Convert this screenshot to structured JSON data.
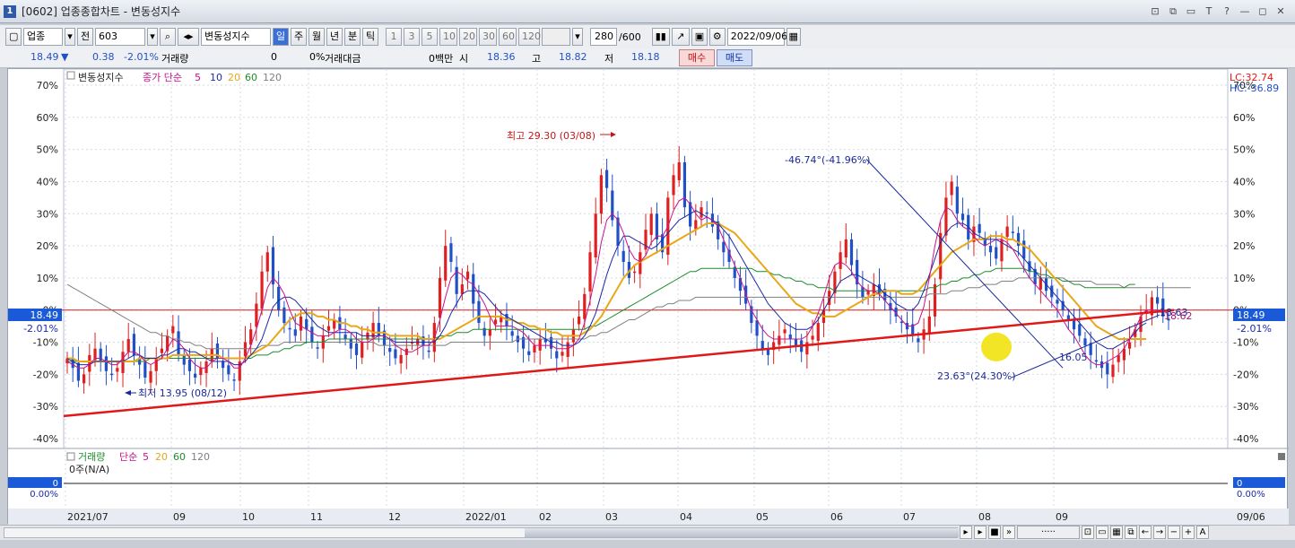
{
  "window": {
    "title": "[0602] 업종종합차트 - 변동성지수",
    "controls": [
      "⊡",
      "⧉",
      "▭",
      "T",
      "?",
      "—",
      "◻",
      "✕"
    ]
  },
  "toolbar": {
    "market": "업종",
    "all_label": "전",
    "code": "603",
    "name": "변동성지수",
    "periods": [
      "일",
      "주",
      "월",
      "년",
      "분",
      "틱"
    ],
    "intervals": [
      "1",
      "3",
      "5",
      "10",
      "20",
      "30",
      "60",
      "120"
    ],
    "count": "280",
    "count_total": "/600",
    "date": "2022/09/06"
  },
  "quote": {
    "price": "18.49",
    "change": "0.38",
    "change_pct": "-2.01%",
    "volume_label": "거래량",
    "volume": "0",
    "volume_pct": "0%",
    "amount_label": "거래대금",
    "amount": "0백만",
    "open_label": "시",
    "open": "18.36",
    "high_label": "고",
    "high": "18.82",
    "low_label": "저",
    "low": "18.18",
    "buy_label": "매수",
    "sell_label": "매도"
  },
  "chart_data": {
    "type": "candlestick",
    "legend": {
      "series_label": "변동성지수",
      "ma_label": "종가 단순",
      "ma_periods": [
        "5",
        "10",
        "20",
        "60",
        "120"
      ],
      "ma_colors": [
        "#c8148c",
        "#1a2aa8",
        "#e8a818",
        "#1e8c2c",
        "#808080"
      ]
    },
    "y_ticks": [
      "70%",
      "60%",
      "50%",
      "40%",
      "30%",
      "20%",
      "10%",
      "0%",
      "-10%",
      "-20%",
      "-30%",
      "-40%"
    ],
    "ylim": [
      -40,
      70
    ],
    "x_ticks": [
      "2021/07",
      "09",
      "10",
      "11",
      "12",
      "2022/01",
      "02",
      "03",
      "04",
      "05",
      "06",
      "07",
      "08",
      "09",
      "09/06"
    ],
    "lc_label": "LC:32.74",
    "hc_label": "HC:-36.89",
    "current_value": "18.49",
    "current_pct": "-2.01%",
    "annotations": {
      "high": "최고 29.30 (03/08)",
      "low": "최저 13.95 (08/12)",
      "trend1": "-46.74°(-41.96%)",
      "trend2": "23.63°(24.30%)",
      "right_value1": "18.63",
      "right_value2": "18.62",
      "mark_value": "16.05"
    },
    "candles": [
      -15,
      -18,
      -22,
      -20,
      -14,
      -12,
      -16,
      -19,
      -20,
      -18,
      -13,
      -9,
      -14,
      -17,
      -21,
      -19,
      -15,
      -12,
      -8,
      -5,
      -14,
      -17,
      -19,
      -21,
      -18,
      -16,
      -12,
      -15,
      -18,
      -20,
      -22,
      -16,
      -10,
      -6,
      2,
      12,
      18,
      8,
      0,
      -4,
      -6,
      -8,
      -2,
      -6,
      -10,
      -12,
      -8,
      -5,
      -3,
      -6,
      -9,
      -12,
      -14,
      -10,
      -7,
      -4,
      -8,
      -11,
      -13,
      -15,
      -14,
      -12,
      -10,
      -9,
      -11,
      -13,
      -4,
      10,
      20,
      15,
      5,
      8,
      12,
      2,
      -4,
      -8,
      -6,
      -3,
      -2,
      -5,
      -8,
      -10,
      -12,
      -14,
      -11,
      -9,
      -10,
      -12,
      -15,
      -13,
      -10,
      -6,
      -2,
      5,
      18,
      30,
      42,
      38,
      28,
      20,
      15,
      10,
      12,
      18,
      25,
      30,
      22,
      18,
      35,
      42,
      46,
      32,
      26,
      28,
      32,
      30,
      26,
      22,
      18,
      15,
      10,
      6,
      2,
      -4,
      -8,
      -12,
      -14,
      -10,
      -8,
      -6,
      -9,
      -11,
      -13,
      -10,
      -8,
      -4,
      0,
      6,
      12,
      18,
      22,
      14,
      8,
      4,
      6,
      8,
      5,
      3,
      0,
      -2,
      -4,
      -6,
      -8,
      -10,
      -6,
      -2,
      8,
      24,
      35,
      40,
      30,
      28,
      22,
      26,
      24,
      20,
      18,
      16,
      22,
      26,
      24,
      20,
      16,
      12,
      8,
      10,
      6,
      4,
      2,
      0,
      -3,
      -6,
      -8,
      -11,
      -14,
      -16,
      -18,
      -20,
      -17,
      -14,
      -12,
      -10,
      -6,
      -2,
      0,
      4,
      2,
      -2,
      -3
    ],
    "ma5": [
      -16,
      -17,
      -18,
      -18,
      -17,
      -15,
      -15,
      -16,
      -17,
      -17,
      -15,
      -13,
      -13,
      -14,
      -16,
      -17,
      -16,
      -15,
      -12,
      -9,
      -10,
      -12,
      -15,
      -17,
      -18,
      -18,
      -16,
      -15,
      -15,
      -16,
      -18,
      -18,
      -15,
      -11,
      -6,
      0,
      7,
      10,
      8,
      5,
      0,
      -4,
      -5,
      -6,
      -7,
      -8,
      -8,
      -8,
      -7,
      -6,
      -6,
      -7,
      -9,
      -10,
      -10,
      -9,
      -8,
      -8,
      -9,
      -11,
      -12,
      -13,
      -13,
      -12,
      -11,
      -11,
      -9,
      -3,
      4,
      10,
      12,
      11,
      9,
      8,
      5,
      2,
      -2,
      -5,
      -5,
      -5,
      -5,
      -6,
      -7,
      -9,
      -11,
      -11,
      -11,
      -11,
      -12,
      -12,
      -12,
      -11,
      -9,
      -4,
      3,
      11,
      21,
      28,
      30,
      28,
      24,
      19,
      16,
      15,
      17,
      21,
      23,
      23,
      26,
      31,
      34,
      35,
      33,
      30,
      28,
      29,
      28,
      26,
      22,
      18,
      14,
      10,
      5,
      0,
      -3,
      -6,
      -8,
      -9,
      -9,
      -9,
      -9,
      -9,
      -9,
      -8,
      -5,
      -1,
      4,
      10,
      14,
      15,
      14,
      12,
      9,
      7,
      6,
      6,
      5,
      3,
      1,
      -1,
      -3,
      -5,
      -5,
      -4,
      1,
      10,
      20,
      28,
      32,
      31,
      28,
      26,
      25,
      23,
      21,
      20,
      21,
      22,
      22,
      21,
      19,
      16,
      13,
      10,
      8,
      6,
      4,
      2,
      0,
      -3,
      -6,
      -8,
      -11,
      -14,
      -16,
      -17,
      -17,
      -16,
      -15,
      -14,
      -12,
      -9,
      -6,
      -2,
      0,
      0,
      0,
      -1
    ],
    "ma10": [
      -15,
      -16,
      -17,
      -17,
      -17,
      -16,
      -16,
      -16,
      -16,
      -16,
      -16,
      -15,
      -14,
      -14,
      -15,
      -15,
      -15,
      -14,
      -14,
      -13,
      -12,
      -12,
      -13,
      -13,
      -14,
      -15,
      -16,
      -16,
      -16,
      -16,
      -17,
      -17,
      -16,
      -14,
      -12,
      -9,
      -4,
      1,
      3,
      4,
      4,
      3,
      1,
      -1,
      -3,
      -5,
      -6,
      -7,
      -7,
      -7,
      -7,
      -7,
      -7,
      -8,
      -8,
      -8,
      -8,
      -8,
      -9,
      -10,
      -10,
      -10,
      -10,
      -10,
      -10,
      -10,
      -10,
      -8,
      -5,
      -1,
      2,
      5,
      6,
      6,
      6,
      5,
      3,
      1,
      -1,
      -2,
      -3,
      -4,
      -5,
      -6,
      -7,
      -8,
      -9,
      -10,
      -10,
      -11,
      -11,
      -11,
      -10,
      -8,
      -5,
      -1,
      5,
      11,
      16,
      20,
      23,
      23,
      22,
      21,
      20,
      19,
      20,
      22,
      24,
      26,
      28,
      29,
      30,
      31,
      30,
      29,
      28,
      27,
      25,
      23,
      20,
      17,
      14,
      11,
      8,
      5,
      2,
      0,
      -2,
      -4,
      -5,
      -6,
      -6,
      -6,
      -5,
      -3,
      0,
      3,
      6,
      9,
      10,
      11,
      11,
      10,
      9,
      8,
      7,
      5,
      4,
      2,
      1,
      0,
      0,
      2,
      6,
      11,
      16,
      21,
      24,
      26,
      27,
      27,
      26,
      24,
      23,
      22,
      22,
      22,
      21,
      20,
      19,
      18,
      16,
      14,
      12,
      10,
      8,
      6,
      4,
      2,
      0,
      -2,
      -4,
      -6,
      -8,
      -10,
      -11,
      -12,
      -12,
      -11,
      -10,
      -9,
      -7,
      -5,
      -4
    ],
    "ma20": [
      -15,
      -15,
      -16,
      -16,
      -16,
      -16,
      -16,
      -16,
      -16,
      -16,
      -16,
      -16,
      -16,
      -15,
      -15,
      -15,
      -15,
      -15,
      -15,
      -14,
      -14,
      -14,
      -14,
      -14,
      -14,
      -14,
      -14,
      -14,
      -15,
      -15,
      -15,
      -15,
      -15,
      -14,
      -13,
      -12,
      -11,
      -9,
      -7,
      -5,
      -3,
      -2,
      -1,
      -1,
      -1,
      -2,
      -2,
      -3,
      -3,
      -4,
      -4,
      -5,
      -5,
      -6,
      -6,
      -7,
      -7,
      -7,
      -8,
      -8,
      -8,
      -8,
      -8,
      -8,
      -9,
      -9,
      -9,
      -9,
      -8,
      -7,
      -6,
      -5,
      -4,
      -3,
      -2,
      -2,
      -2,
      -2,
      -2,
      -3,
      -3,
      -4,
      -4,
      -5,
      -5,
      -6,
      -6,
      -7,
      -7,
      -8,
      -8,
      -8,
      -8,
      -7,
      -6,
      -4,
      -2,
      1,
      4,
      7,
      10,
      12,
      14,
      15,
      16,
      17,
      18,
      19,
      20,
      21,
      22,
      23,
      24,
      25,
      26,
      27,
      27,
      27,
      26,
      25,
      24,
      22,
      20,
      18,
      16,
      14,
      12,
      10,
      8,
      6,
      4,
      2,
      1,
      0,
      -1,
      -1,
      -2,
      -2,
      -2,
      -1,
      0,
      1,
      2,
      3,
      4,
      5,
      5,
      6,
      6,
      6,
      5,
      5,
      5,
      6,
      8,
      10,
      12,
      14,
      16,
      18,
      19,
      20,
      21,
      22,
      22,
      22,
      23,
      23,
      23,
      22,
      22,
      21,
      20,
      19,
      17,
      15,
      13,
      11,
      9,
      7,
      5,
      3,
      1,
      -1,
      -3,
      -5,
      -6,
      -7,
      -8,
      -9,
      -9,
      -9,
      -9,
      -9,
      -9
    ],
    "ma60": [
      -16,
      -16,
      -16,
      -16,
      -16,
      -16,
      -16,
      -16,
      -16,
      -16,
      -16,
      -16,
      -16,
      -16,
      -16,
      -15,
      -15,
      -15,
      -15,
      -15,
      -15,
      -15,
      -15,
      -15,
      -15,
      -15,
      -15,
      -15,
      -15,
      -15,
      -15,
      -15,
      -15,
      -15,
      -14,
      -14,
      -14,
      -13,
      -13,
      -12,
      -12,
      -11,
      -11,
      -10,
      -10,
      -10,
      -10,
      -9,
      -9,
      -9,
      -9,
      -9,
      -9,
      -9,
      -9,
      -9,
      -9,
      -9,
      -9,
      -9,
      -9,
      -9,
      -9,
      -9,
      -9,
      -9,
      -9,
      -8,
      -8,
      -8,
      -7,
      -7,
      -7,
      -6,
      -6,
      -6,
      -6,
      -6,
      -6,
      -6,
      -6,
      -6,
      -6,
      -6,
      -6,
      -6,
      -6,
      -6,
      -6,
      -6,
      -6,
      -6,
      -6,
      -6,
      -5,
      -5,
      -4,
      -3,
      -2,
      -1,
      0,
      1,
      2,
      3,
      4,
      5,
      6,
      7,
      8,
      9,
      10,
      11,
      12,
      12,
      13,
      13,
      13,
      13,
      13,
      13,
      13,
      13,
      13,
      13,
      12,
      12,
      12,
      11,
      11,
      10,
      10,
      9,
      9,
      8,
      8,
      7,
      7,
      7,
      6,
      6,
      6,
      6,
      6,
      6,
      6,
      6,
      6,
      6,
      6,
      6,
      6,
      6,
      6,
      6,
      6,
      7,
      7,
      8,
      8,
      9,
      9,
      10,
      10,
      11,
      11,
      12,
      12,
      13,
      13,
      13,
      13,
      13,
      13,
      12,
      12,
      11,
      11,
      10,
      10,
      9,
      9,
      8,
      8,
      7,
      7,
      7,
      7,
      7,
      7,
      7,
      7,
      8,
      8
    ],
    "ma120": [
      8,
      7,
      6,
      5,
      4,
      3,
      2,
      1,
      0,
      -1,
      -2,
      -3,
      -4,
      -5,
      -6,
      -7,
      -7,
      -8,
      -8,
      -9,
      -9,
      -10,
      -10,
      -11,
      -11,
      -12,
      -12,
      -12,
      -12,
      -12,
      -12,
      -12,
      -12,
      -12,
      -12,
      -11,
      -11,
      -11,
      -11,
      -10,
      -10,
      -10,
      -10,
      -10,
      -10,
      -10,
      -10,
      -10,
      -10,
      -10,
      -10,
      -10,
      -10,
      -10,
      -10,
      -10,
      -11,
      -11,
      -11,
      -11,
      -11,
      -11,
      -11,
      -11,
      -11,
      -11,
      -11,
      -11,
      -11,
      -10,
      -10,
      -10,
      -10,
      -10,
      -10,
      -10,
      -10,
      -10,
      -10,
      -10,
      -10,
      -9,
      -9,
      -9,
      -9,
      -9,
      -9,
      -9,
      -9,
      -9,
      -9,
      -9,
      -9,
      -9,
      -8,
      -8,
      -7,
      -7,
      -6,
      -5,
      -4,
      -3,
      -3,
      -2,
      -1,
      0,
      1,
      1,
      2,
      2,
      3,
      3,
      3,
      4,
      4,
      4,
      4,
      4,
      4,
      4,
      4,
      4,
      4,
      4,
      4,
      4,
      4,
      4,
      4,
      4,
      4,
      4,
      4,
      4,
      4,
      4,
      4,
      4,
      4,
      4,
      4,
      4,
      4,
      4,
      4,
      4,
      4,
      4,
      4,
      4,
      4,
      4,
      4,
      4,
      4,
      5,
      5,
      5,
      5,
      6,
      6,
      6,
      7,
      7,
      7,
      8,
      8,
      8,
      9,
      9,
      9,
      10,
      10,
      10,
      10,
      10,
      10,
      10,
      10,
      10,
      9,
      9,
      9,
      9,
      9,
      8,
      8,
      8,
      8,
      8,
      7,
      7,
      7,
      7,
      7,
      7,
      7,
      7,
      7,
      7,
      7,
      7,
      7
    ]
  },
  "volume_panel": {
    "label": "거래량",
    "ma_label": "단순",
    "ma_periods": [
      "5",
      "20",
      "60",
      "120"
    ],
    "value_text": "0주(N/A)",
    "left_value": "0",
    "left_pct": "0.00%",
    "right_value": "0",
    "right_pct": "0.00%"
  },
  "colors": {
    "up": "#e02020",
    "down": "#2050c8",
    "trendline": "#e01818",
    "hline": "#e01818",
    "navy": "#1a2a9a"
  }
}
